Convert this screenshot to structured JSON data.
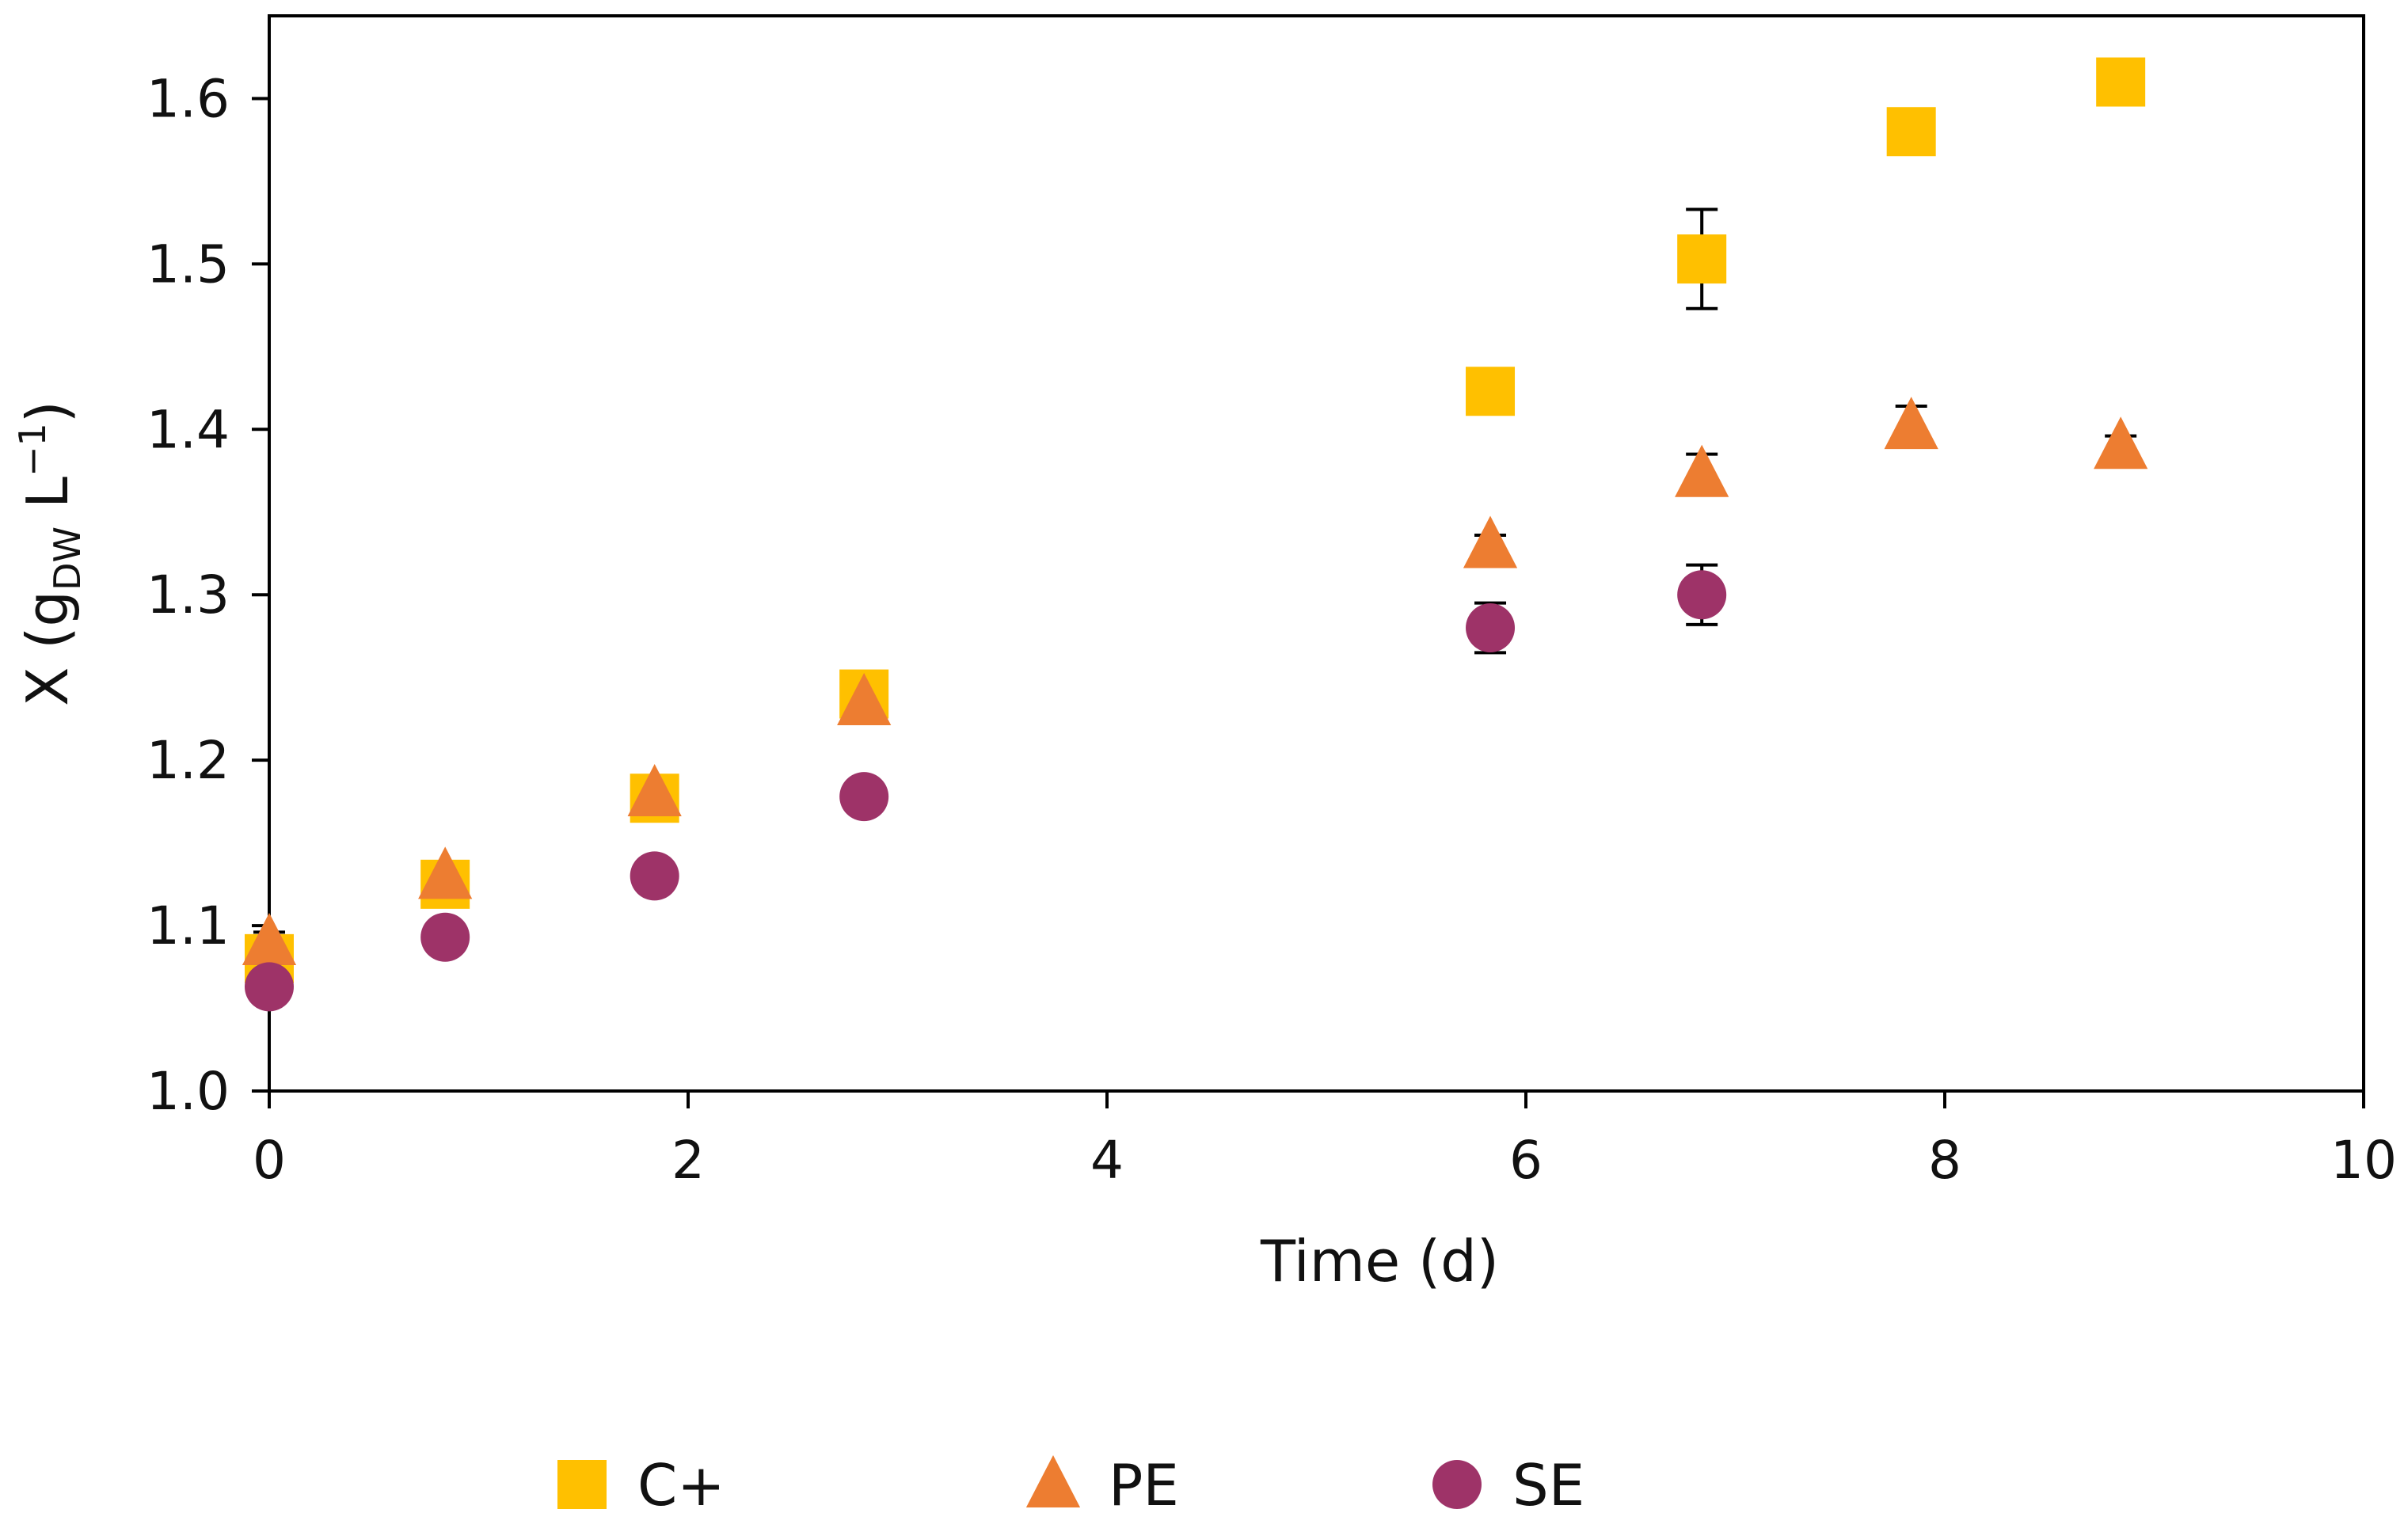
{
  "chart_data": {
    "type": "scatter",
    "title": "",
    "xlabel": "Time (d)",
    "ylabel": {
      "prefix": "X (g",
      "subscript": "DW",
      "middle": " L",
      "superscript": "−1",
      "suffix": ")"
    },
    "xlim": [
      0,
      10
    ],
    "ylim": [
      1.0,
      1.65
    ],
    "x_ticks": [
      0,
      2,
      4,
      6,
      8,
      10
    ],
    "x_tick_labels": [
      "0",
      "2",
      "4",
      "6",
      "8",
      "10"
    ],
    "y_ticks": [
      1.0,
      1.1,
      1.2,
      1.3,
      1.4,
      1.5,
      1.6
    ],
    "y_tick_labels": [
      "1.0",
      "1.1",
      "1.2",
      "1.3",
      "1.4",
      "1.5",
      "1.6"
    ],
    "grid": false,
    "legend_position": "bottom",
    "series": [
      {
        "name": "C+",
        "marker": "square",
        "color": "#FFC000",
        "points": [
          {
            "x": 0.0,
            "y": 1.08,
            "err": 0.0
          },
          {
            "x": 0.84,
            "y": 1.125,
            "err": 0.0
          },
          {
            "x": 1.84,
            "y": 1.177,
            "err": 0.0
          },
          {
            "x": 2.84,
            "y": 1.24,
            "err": 0.0
          },
          {
            "x": 5.83,
            "y": 1.423,
            "err": 0.0
          },
          {
            "x": 6.84,
            "y": 1.503,
            "err": 0.03
          },
          {
            "x": 7.84,
            "y": 1.58,
            "err": 0.0
          },
          {
            "x": 8.84,
            "y": 1.61,
            "err": 0.0
          }
        ]
      },
      {
        "name": "PE",
        "marker": "triangle",
        "color": "#ED7D31",
        "points": [
          {
            "x": 0.0,
            "y": 1.09,
            "err": 0.006
          },
          {
            "x": 0.84,
            "y": 1.13,
            "err": 0.0
          },
          {
            "x": 1.84,
            "y": 1.18,
            "err": 0.0
          },
          {
            "x": 2.84,
            "y": 1.235,
            "err": 0.0
          },
          {
            "x": 5.83,
            "y": 1.33,
            "err": 0.006
          },
          {
            "x": 6.84,
            "y": 1.373,
            "err": 0.012
          },
          {
            "x": 7.84,
            "y": 1.402,
            "err": 0.012
          },
          {
            "x": 8.84,
            "y": 1.39,
            "err": 0.006
          }
        ]
      },
      {
        "name": "SE",
        "marker": "circle",
        "color": "#9E3368",
        "points": [
          {
            "x": 0.0,
            "y": 1.063,
            "err": 0.0
          },
          {
            "x": 0.84,
            "y": 1.093,
            "err": 0.0
          },
          {
            "x": 1.84,
            "y": 1.13,
            "err": 0.0
          },
          {
            "x": 2.84,
            "y": 1.178,
            "err": 0.0
          },
          {
            "x": 5.83,
            "y": 1.28,
            "err": 0.015
          },
          {
            "x": 6.84,
            "y": 1.3,
            "err": 0.018
          }
        ]
      }
    ]
  }
}
